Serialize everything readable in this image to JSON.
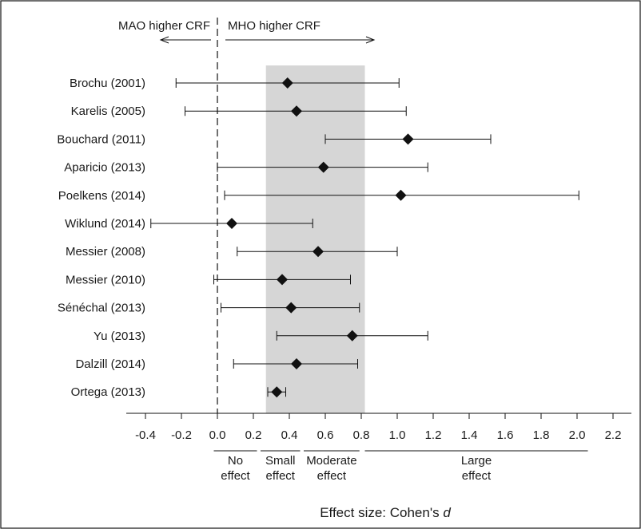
{
  "chart_data": {
    "type": "scatter",
    "subtype": "forest-plot",
    "xlim": [
      -0.5,
      2.3
    ],
    "xticks": [
      -0.4,
      -0.2,
      0.0,
      0.2,
      0.4,
      0.6,
      0.8,
      1.0,
      1.2,
      1.4,
      1.6,
      1.8,
      2.0,
      2.2
    ],
    "tick_labels": [
      "-0.4",
      "-0.2",
      "0.0",
      "0.2",
      "0.4",
      "0.6",
      "0.8",
      "1.0",
      "1.2",
      "1.4",
      "1.6",
      "1.8",
      "2.0",
      "2.2"
    ],
    "xlabel": "Effect size: Cohen's",
    "xlabel_italic": "d",
    "reference_line_x": 0.0,
    "shaded_region": [
      0.27,
      0.82
    ],
    "arrow_left_label": "MAO higher CRF",
    "arrow_right_label": "MHO higher CRF",
    "studies": [
      {
        "label": "Brochu (2001)",
        "d": 0.39,
        "lower": -0.23,
        "upper": 1.01
      },
      {
        "label": "Karelis (2005)",
        "d": 0.44,
        "lower": -0.18,
        "upper": 1.05
      },
      {
        "label": "Bouchard (2011)",
        "d": 1.06,
        "lower": 0.6,
        "upper": 1.52
      },
      {
        "label": "Aparicio (2013)",
        "d": 0.59,
        "lower": 0.0,
        "upper": 1.17
      },
      {
        "label": "Poelkens (2014)",
        "d": 1.02,
        "lower": 0.04,
        "upper": 2.01
      },
      {
        "label": "Wiklund (2014)",
        "d": 0.08,
        "lower": -0.37,
        "upper": 0.53
      },
      {
        "label": "Messier (2008)",
        "d": 0.56,
        "lower": 0.11,
        "upper": 1.0
      },
      {
        "label": "Messier (2010)",
        "d": 0.36,
        "lower": -0.02,
        "upper": 0.74
      },
      {
        "label": "Sénéchal (2013)",
        "d": 0.41,
        "lower": 0.02,
        "upper": 0.79
      },
      {
        "label": "Yu (2013)",
        "d": 0.75,
        "lower": 0.33,
        "upper": 1.17
      },
      {
        "label": "Dalzill (2014)",
        "d": 0.44,
        "lower": 0.09,
        "upper": 0.78
      },
      {
        "label": "Ortega (2013)",
        "d": 0.33,
        "lower": 0.28,
        "upper": 0.38
      }
    ],
    "effect_categories": [
      {
        "line1": "No",
        "line2": "effect",
        "from": -0.02,
        "to": 0.22
      },
      {
        "line1": "Small",
        "line2": "effect",
        "from": 0.24,
        "to": 0.46
      },
      {
        "line1": "Moderate",
        "line2": "effect",
        "from": 0.48,
        "to": 0.79
      },
      {
        "line1": "Large",
        "line2": "effect",
        "from": 0.82,
        "to": 2.06
      }
    ]
  }
}
